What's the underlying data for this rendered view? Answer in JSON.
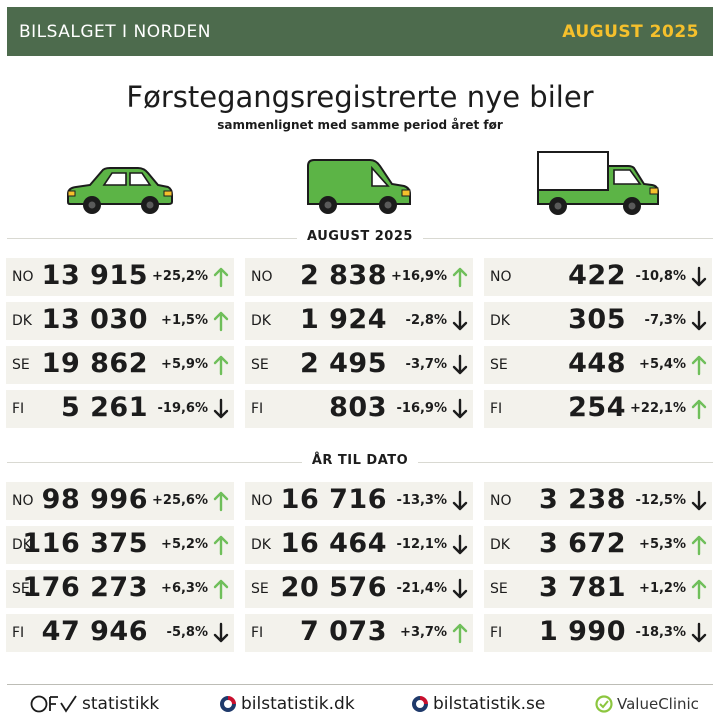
{
  "header": {
    "left": "BILSALGET I NORDEN",
    "right": "AUGUST 2025"
  },
  "title": "Førstegangsregistrerte nye biler",
  "subtitle": "sammenlignet med samme period året før",
  "colors": {
    "header_bg": "#4d6b4d",
    "accent": "#f5c02c",
    "vehicle_green": "#5cb446",
    "up": "#6fbf5a",
    "down": "#1c1c1c",
    "cell_bg": "#f3f2ec"
  },
  "vehicles": [
    "car-icon",
    "van-icon",
    "truck-icon"
  ],
  "sections": [
    {
      "label": "AUGUST 2025",
      "columns": [
        {
          "vehicle": "car",
          "rows": [
            {
              "cc": "NO",
              "num": "13 915",
              "pct": "+25,2%",
              "dir": "up"
            },
            {
              "cc": "DK",
              "num": "13 030",
              "pct": "+1,5%",
              "dir": "up"
            },
            {
              "cc": "SE",
              "num": "19 862",
              "pct": "+5,9%",
              "dir": "up"
            },
            {
              "cc": "FI",
              "num": "5 261",
              "pct": "-19,6%",
              "dir": "down"
            }
          ]
        },
        {
          "vehicle": "van",
          "rows": [
            {
              "cc": "NO",
              "num": "2 838",
              "pct": "+16,9%",
              "dir": "up"
            },
            {
              "cc": "DK",
              "num": "1 924",
              "pct": "-2,8%",
              "dir": "down"
            },
            {
              "cc": "SE",
              "num": "2 495",
              "pct": "-3,7%",
              "dir": "down"
            },
            {
              "cc": "FI",
              "num": "803",
              "pct": "-16,9%",
              "dir": "down"
            }
          ]
        },
        {
          "vehicle": "truck",
          "rows": [
            {
              "cc": "NO",
              "num": "422",
              "pct": "-10,8%",
              "dir": "down"
            },
            {
              "cc": "DK",
              "num": "305",
              "pct": "-7,3%",
              "dir": "down"
            },
            {
              "cc": "SE",
              "num": "448",
              "pct": "+5,4%",
              "dir": "up"
            },
            {
              "cc": "FI",
              "num": "254",
              "pct": "+22,1%",
              "dir": "up"
            }
          ]
        }
      ]
    },
    {
      "label": "ÅR TIL DATO",
      "columns": [
        {
          "vehicle": "car",
          "rows": [
            {
              "cc": "NO",
              "num": "98 996",
              "pct": "+25,6%",
              "dir": "up"
            },
            {
              "cc": "DK",
              "num": "116 375",
              "pct": "+5,2%",
              "dir": "up"
            },
            {
              "cc": "SE",
              "num": "176 273",
              "pct": "+6,3%",
              "dir": "up"
            },
            {
              "cc": "FI",
              "num": "47 946",
              "pct": "-5,8%",
              "dir": "down"
            }
          ]
        },
        {
          "vehicle": "van",
          "rows": [
            {
              "cc": "NO",
              "num": "16 716",
              "pct": "-13,3%",
              "dir": "down"
            },
            {
              "cc": "DK",
              "num": "16 464",
              "pct": "-12,1%",
              "dir": "down"
            },
            {
              "cc": "SE",
              "num": "20 576",
              "pct": "-21,4%",
              "dir": "down"
            },
            {
              "cc": "FI",
              "num": "7 073",
              "pct": "+3,7%",
              "dir": "up"
            }
          ]
        },
        {
          "vehicle": "truck",
          "rows": [
            {
              "cc": "NO",
              "num": "3 238",
              "pct": "-12,5%",
              "dir": "down"
            },
            {
              "cc": "DK",
              "num": "3 672",
              "pct": "+5,3%",
              "dir": "up"
            },
            {
              "cc": "SE",
              "num": "3 781",
              "pct": "+1,2%",
              "dir": "up"
            },
            {
              "cc": "FI",
              "num": "1 990",
              "pct": "-18,3%",
              "dir": "down"
            }
          ]
        }
      ]
    }
  ],
  "footer": {
    "ofv_logo": "OFV",
    "ofv_text": "statistikk",
    "dk": "bilstatistik.dk",
    "se": "bilstatistik.se",
    "vc": "ValueClinic"
  }
}
